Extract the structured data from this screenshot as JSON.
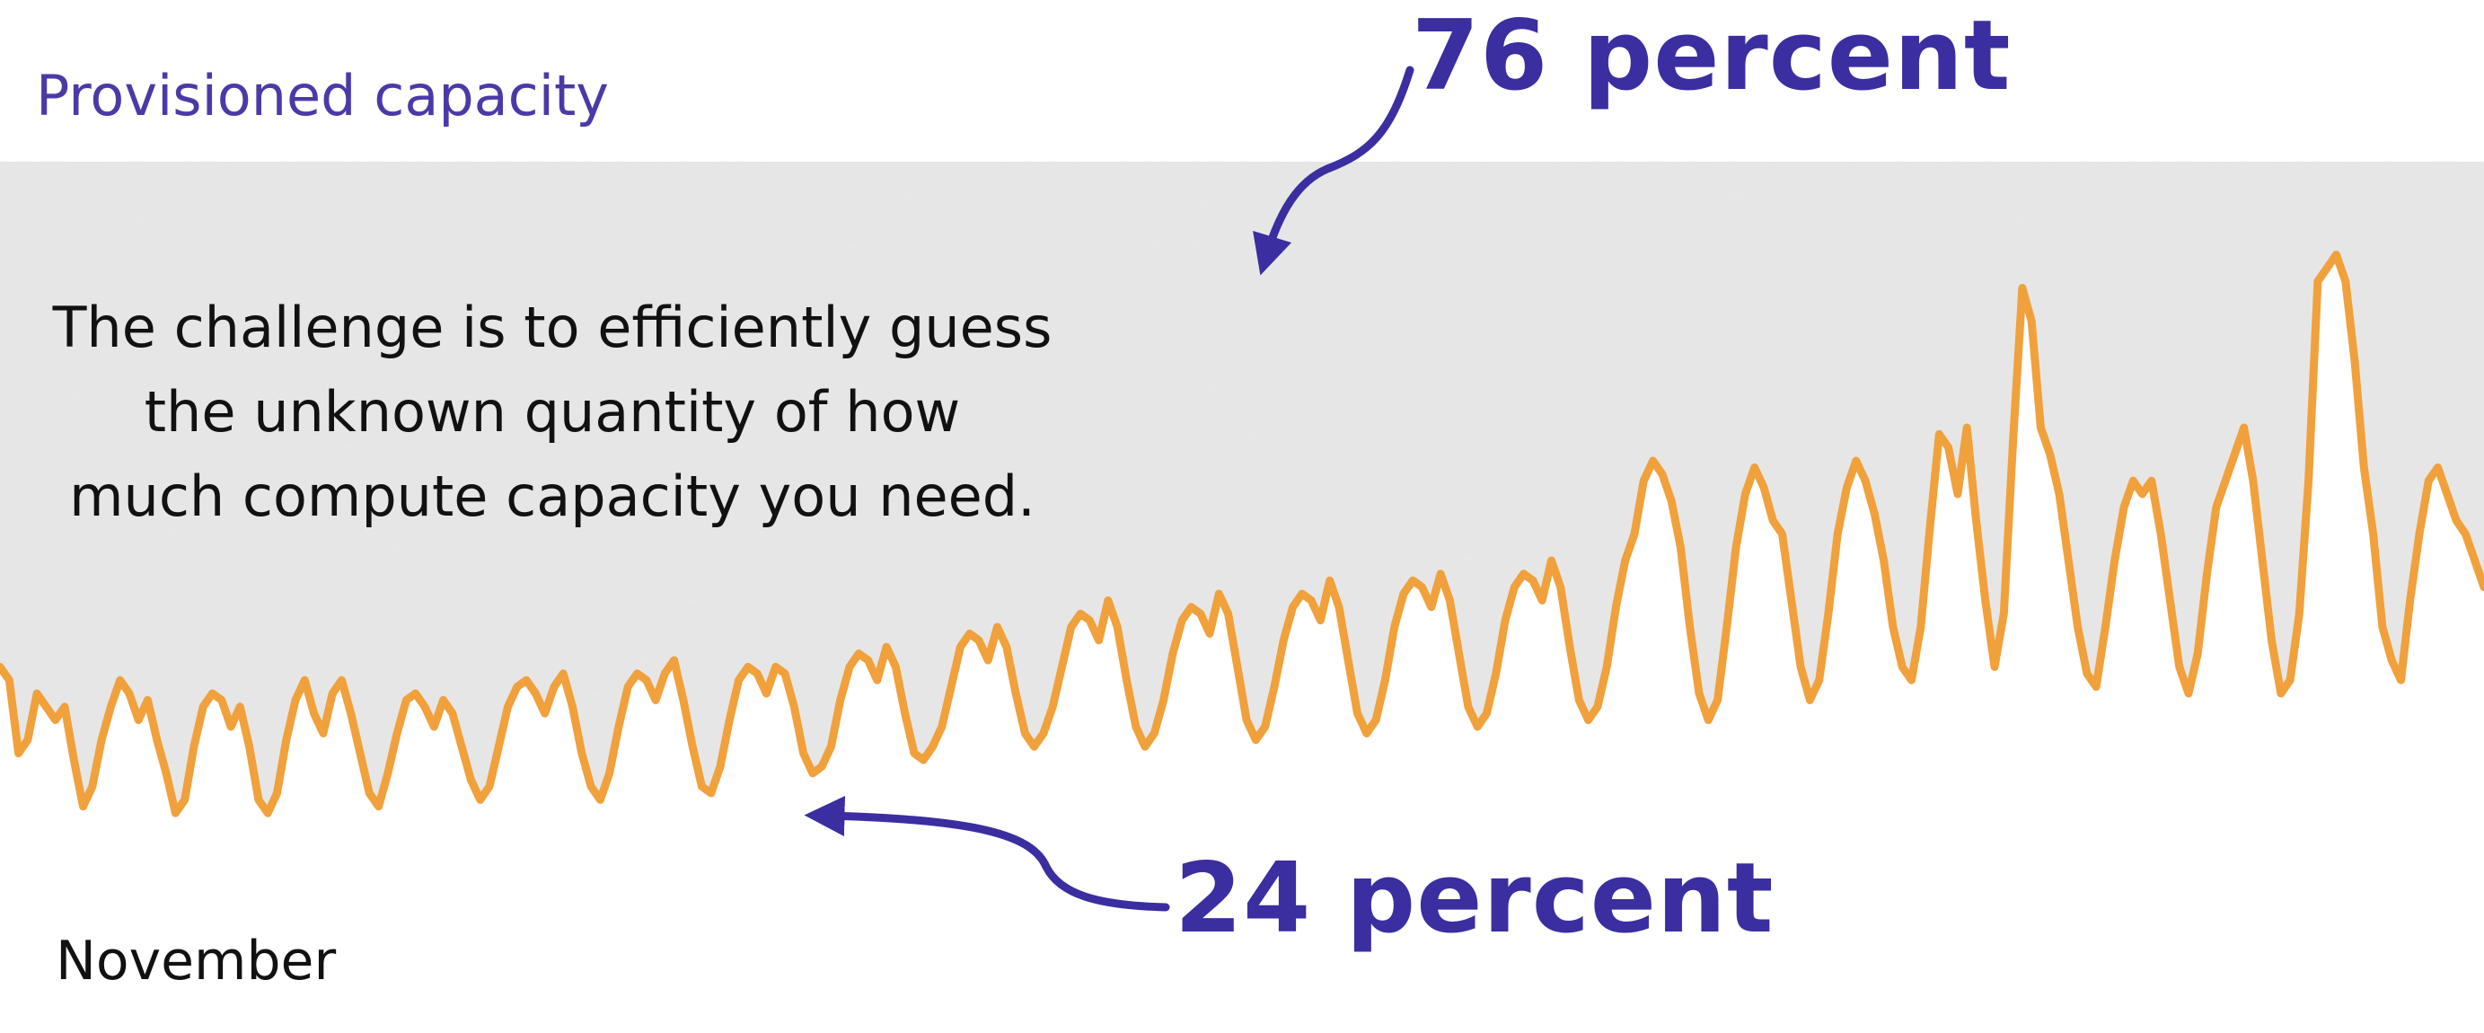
{
  "slide": {
    "provisioned_label": "Provisioned capacity",
    "callout_lines": [
      "The challenge is to efficiently guess",
      "the unknown quantity of how",
      "much compute capacity you need."
    ],
    "top_annotation": "76 percent",
    "bottom_annotation": "24 percent",
    "month_label": "November"
  },
  "colors": {
    "provisioned_band": "#e6e6e6",
    "demand_line": "#f0a13c",
    "accent": "#3a2ea0",
    "text": "#111111"
  },
  "chart_data": {
    "type": "line",
    "title": "",
    "xlabel": "November",
    "ylabel": "",
    "ylim": [
      0,
      100
    ],
    "grid": false,
    "legend": "none",
    "provisioned_capacity": 100,
    "series": [
      {
        "values": [
          24,
          22,
          11,
          13,
          20,
          18,
          16,
          18,
          10,
          3,
          6,
          13,
          18,
          22,
          20,
          16,
          19,
          13,
          8,
          2,
          4,
          12,
          18,
          20,
          19,
          15,
          18,
          12,
          4,
          2,
          5,
          13,
          19,
          22,
          17,
          14,
          20,
          22,
          17,
          11,
          5,
          3,
          8,
          14,
          19,
          20,
          18,
          15,
          19,
          17,
          12,
          7,
          4,
          6,
          12,
          18,
          21,
          22,
          20,
          17,
          21,
          23,
          18,
          11,
          6,
          4,
          8,
          15,
          21,
          23,
          22,
          19,
          23,
          25,
          19,
          12,
          6,
          5,
          9,
          16,
          22,
          24,
          23,
          20,
          24,
          23,
          18,
          11,
          8,
          9,
          12,
          19,
          24,
          26,
          25,
          22,
          27,
          24,
          17,
          11,
          10,
          12,
          15,
          21,
          27,
          29,
          28,
          25,
          30,
          27,
          20,
          14,
          12,
          14,
          18,
          24,
          30,
          32,
          31,
          28,
          34,
          30,
          22,
          15,
          12,
          14,
          19,
          26,
          31,
          33,
          32,
          29,
          35,
          32,
          24,
          16,
          13,
          15,
          21,
          28,
          33,
          35,
          34,
          31,
          37,
          33,
          25,
          17,
          14,
          16,
          22,
          30,
          35,
          37,
          36,
          33,
          38,
          34,
          26,
          18,
          15,
          17,
          23,
          31,
          36,
          38,
          37,
          34,
          40,
          36,
          27,
          19,
          16,
          18,
          24,
          33,
          40,
          44,
          52,
          55,
          53,
          49,
          42,
          30,
          20,
          16,
          19,
          30,
          42,
          50,
          54,
          51,
          46,
          44,
          34,
          24,
          19,
          22,
          32,
          44,
          51,
          55,
          52,
          47,
          40,
          30,
          24,
          22,
          30,
          45,
          59,
          57,
          50,
          60,
          46,
          34,
          24,
          32,
          58,
          81,
          76,
          60,
          56,
          50,
          40,
          30,
          23,
          21,
          30,
          40,
          48,
          52,
          50,
          52,
          44,
          34,
          24,
          20,
          26,
          38,
          48,
          52,
          56,
          60,
          52,
          40,
          28,
          20,
          22,
          32,
          52,
          82,
          84,
          86,
          82,
          70,
          54,
          44,
          30,
          25,
          22,
          34,
          44,
          52,
          54,
          50,
          46,
          44,
          40,
          36
        ]
      }
    ],
    "annotations": [
      {
        "text": "76 percent",
        "points_to": "provisioned capacity band (unused headroom)"
      },
      {
        "text": "24 percent",
        "points_to": "actual demand line"
      }
    ]
  }
}
